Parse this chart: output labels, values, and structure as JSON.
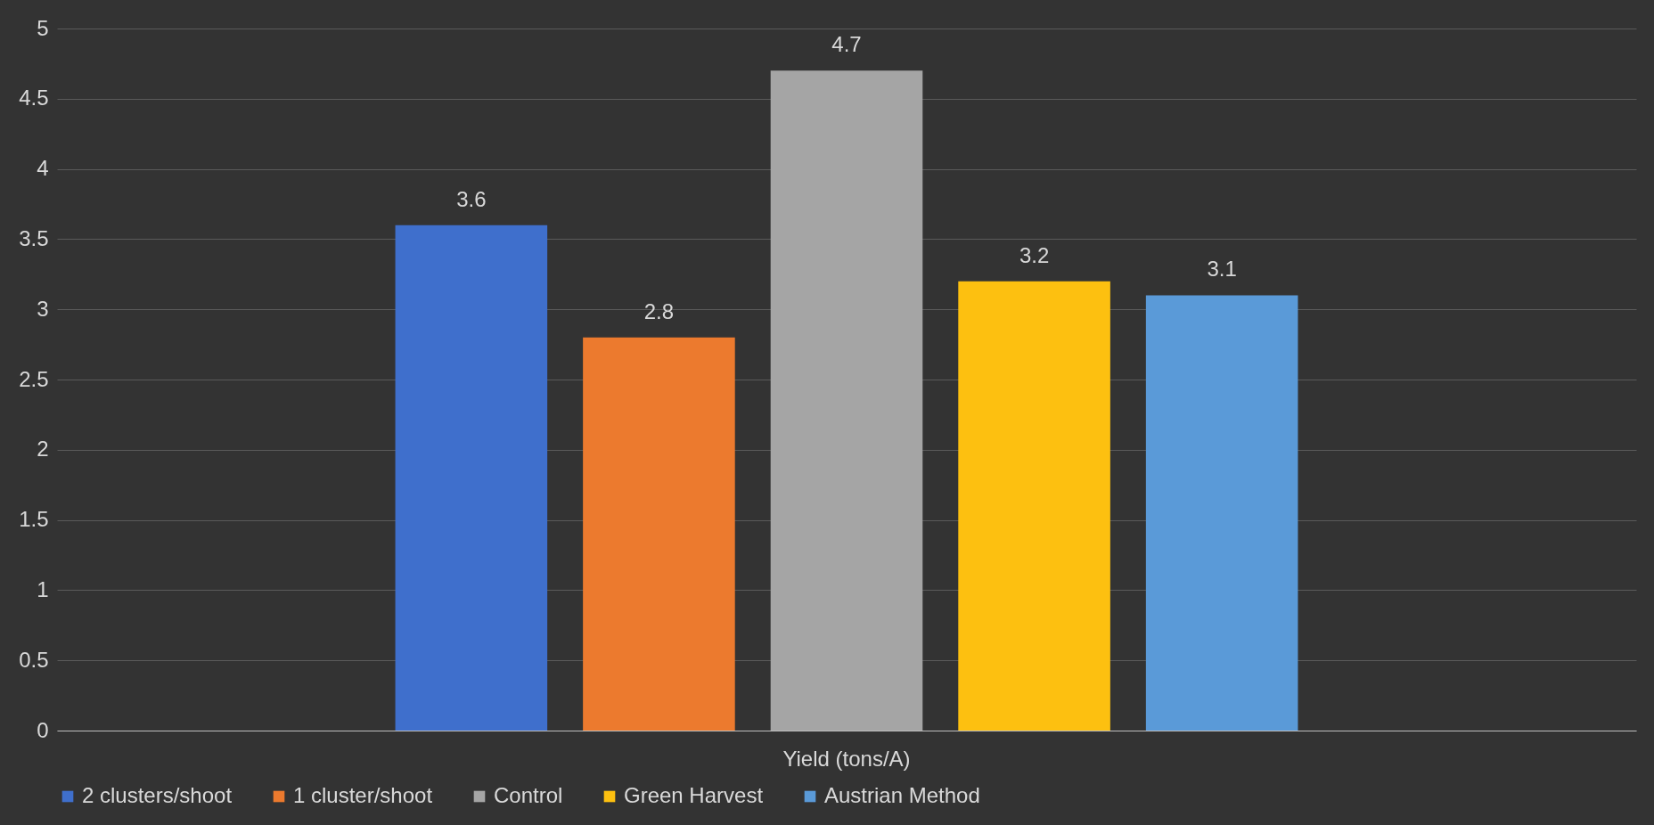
{
  "chart_data": {
    "type": "bar",
    "categories": [
      "Yield (tons/A)"
    ],
    "series": [
      {
        "name": "2 clusters/shoot",
        "color": "#3f6fcc",
        "values": [
          3.6
        ]
      },
      {
        "name": "1 cluster/shoot",
        "color": "#ec7a2e",
        "values": [
          2.8
        ]
      },
      {
        "name": "Control",
        "color": "#a5a5a5",
        "values": [
          4.7
        ]
      },
      {
        "name": "Green Harvest",
        "color": "#fdc010",
        "values": [
          3.2
        ]
      },
      {
        "name": "Austrian Method",
        "color": "#5a9ad8",
        "values": [
          3.1
        ]
      }
    ],
    "ylim": [
      0,
      5
    ],
    "yticks": [
      0,
      0.5,
      1,
      1.5,
      2,
      2.5,
      3,
      3.5,
      4,
      4.5,
      5
    ],
    "grid": "y",
    "legend": "bottom",
    "data_labels": true
  }
}
